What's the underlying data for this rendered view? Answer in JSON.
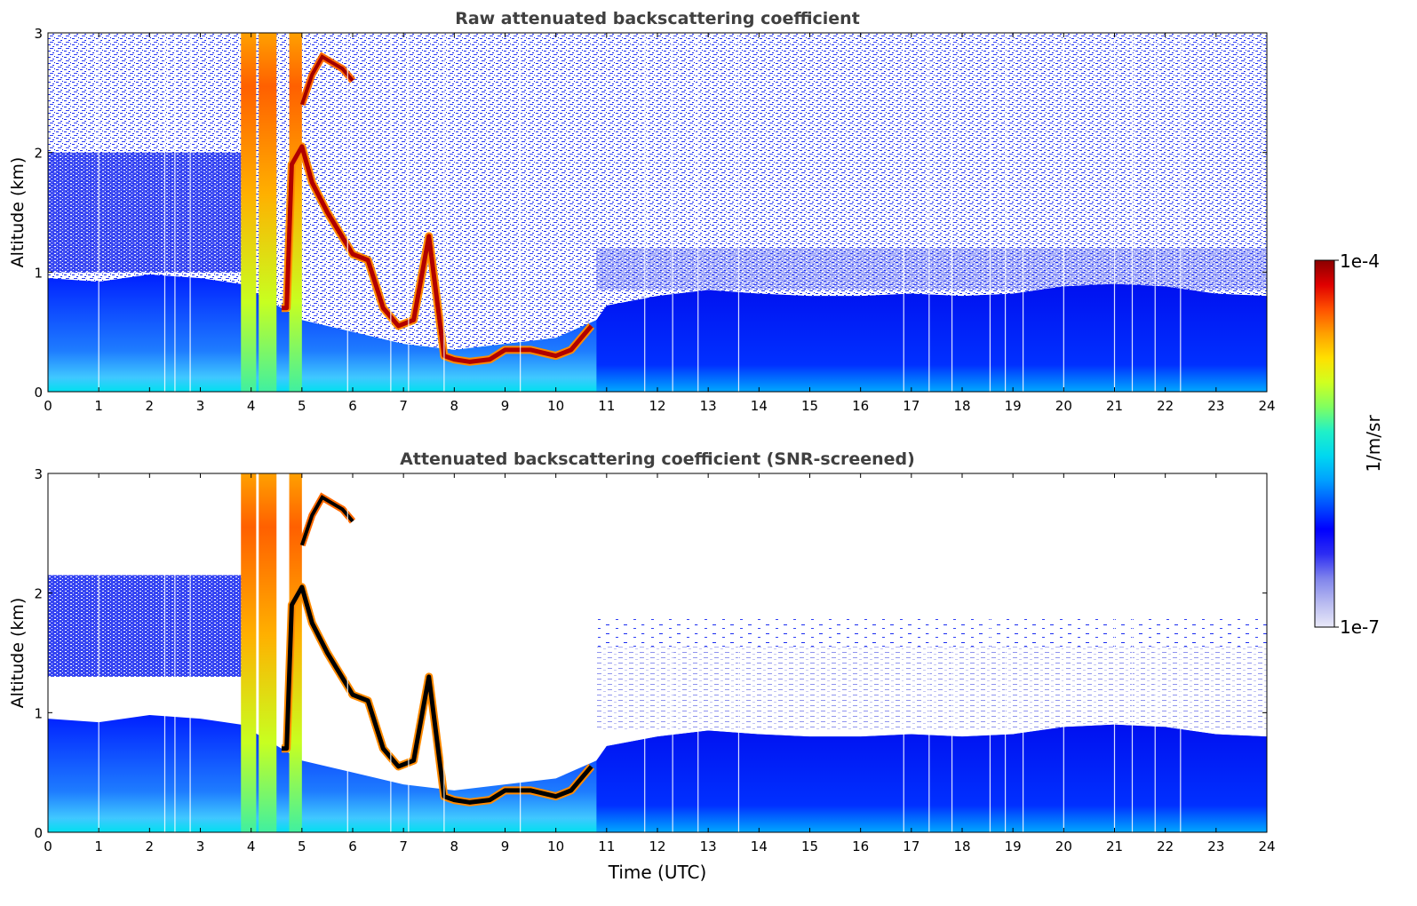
{
  "chart_data": [
    {
      "type": "heatmap",
      "title": "Raw attenuated backscattering coefficient",
      "xlabel": "",
      "ylabel": "Altitude (km)",
      "xlim": [
        0,
        24
      ],
      "ylim": [
        0,
        3
      ],
      "xticks": [
        "0",
        "1",
        "2",
        "3",
        "4",
        "5",
        "6",
        "7",
        "8",
        "9",
        "10",
        "11",
        "12",
        "13",
        "14",
        "15",
        "16",
        "17",
        "18",
        "19",
        "20",
        "21",
        "22",
        "23",
        "24"
      ],
      "yticks": [
        "0",
        "1",
        "2",
        "3"
      ],
      "screened": false,
      "series": [
        {
          "role": "boundary-layer-top",
          "x": [
            0,
            1,
            2,
            3,
            3.8,
            5,
            6,
            7,
            8,
            9,
            10,
            10.8,
            11,
            12,
            13,
            14,
            15,
            16,
            17,
            18,
            19,
            20,
            21,
            22,
            23,
            24
          ],
          "y": [
            0.95,
            0.92,
            0.98,
            0.95,
            0.9,
            0.6,
            0.5,
            0.4,
            0.35,
            0.4,
            0.45,
            0.6,
            0.72,
            0.8,
            0.85,
            0.82,
            0.8,
            0.8,
            0.82,
            0.8,
            0.82,
            0.88,
            0.9,
            0.88,
            0.82,
            0.8
          ]
        },
        {
          "role": "cloud-layer",
          "x": [
            4.6,
            4.7,
            4.8,
            5.0,
            5.2,
            5.5,
            6.0,
            6.3,
            6.6,
            6.9,
            7.2,
            7.5,
            7.8,
            8.0,
            8.3,
            8.7,
            9.0,
            9.5,
            10.0,
            10.3,
            10.5,
            10.7
          ],
          "y": [
            0.7,
            0.7,
            1.9,
            2.05,
            1.75,
            1.5,
            1.15,
            1.1,
            0.7,
            0.55,
            0.6,
            1.3,
            0.3,
            0.27,
            0.25,
            0.27,
            0.35,
            0.35,
            0.3,
            0.35,
            0.45,
            0.55
          ]
        },
        {
          "role": "high-cloud",
          "x": [
            5.0,
            5.2,
            5.4,
            5.6,
            5.8,
            6.0
          ],
          "y": [
            2.4,
            2.65,
            2.8,
            2.75,
            2.7,
            2.6
          ]
        },
        {
          "role": "rain-column",
          "x": [
            3.8,
            4.0,
            4.2,
            4.4,
            4.5
          ],
          "y": [
            3,
            3,
            3,
            3,
            3
          ]
        }
      ]
    },
    {
      "type": "heatmap",
      "title": "Attenuated backscattering coefficient (SNR-screened)",
      "xlabel": "Time (UTC)",
      "ylabel": "Altitude (km)",
      "xlim": [
        0,
        24
      ],
      "ylim": [
        0,
        3
      ],
      "xticks": [
        "0",
        "1",
        "2",
        "3",
        "4",
        "5",
        "6",
        "7",
        "8",
        "9",
        "10",
        "11",
        "12",
        "13",
        "14",
        "15",
        "16",
        "17",
        "18",
        "19",
        "20",
        "21",
        "22",
        "23",
        "24"
      ],
      "yticks": [
        "0",
        "1",
        "2",
        "3"
      ],
      "screened": true
    }
  ],
  "colorbar": {
    "label": "1/m/sr",
    "max_label": "1e-4",
    "min_label": "1e-7",
    "scale": "log",
    "range": [
      1e-07,
      0.0001
    ],
    "colors": [
      "#e9e9f8",
      "#b7b9f0",
      "#7f83ec",
      "#2c2cf3",
      "#0000ff",
      "#0050ff",
      "#00a0ff",
      "#00d8f0",
      "#20f0c8",
      "#80ff60",
      "#d0ff20",
      "#ffe000",
      "#ffa000",
      "#ff5000",
      "#e00000",
      "#8a0000"
    ]
  }
}
